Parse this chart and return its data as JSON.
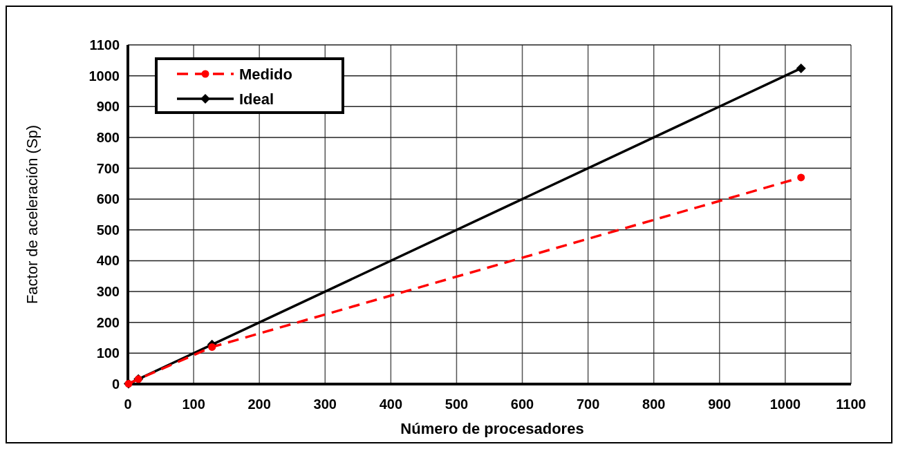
{
  "chart_data": {
    "type": "line",
    "xlabel": "Número de procesadores",
    "ylabel": "Factor de aceleración (Sp)",
    "xlim": [
      0,
      1100
    ],
    "xticks": [
      0,
      100,
      200,
      300,
      400,
      500,
      600,
      700,
      800,
      900,
      1000,
      1100
    ],
    "ylim": [
      0,
      1100
    ],
    "yticks": [
      0,
      100,
      200,
      300,
      400,
      500,
      600,
      700,
      800,
      900,
      1000,
      1100
    ],
    "grid": true,
    "legend": "top left",
    "series": [
      {
        "name": "Medido",
        "color": "#ff0000",
        "x": [
          1,
          16,
          128,
          1024
        ],
        "values": [
          1,
          16,
          120,
          670
        ],
        "marker": "circle",
        "line_style": "dashed"
      },
      {
        "name": "Ideal",
        "color": "#000000",
        "x": [
          1,
          16,
          128,
          1024
        ],
        "values": [
          1,
          16,
          128,
          1024
        ],
        "marker": "diamond",
        "line_style": "solid"
      }
    ]
  }
}
